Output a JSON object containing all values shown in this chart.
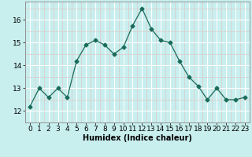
{
  "x": [
    0,
    1,
    2,
    3,
    4,
    5,
    6,
    7,
    8,
    9,
    10,
    11,
    12,
    13,
    14,
    15,
    16,
    17,
    18,
    19,
    20,
    21,
    22,
    23
  ],
  "y": [
    12.2,
    13.0,
    12.6,
    13.0,
    12.6,
    14.2,
    14.9,
    15.1,
    14.9,
    14.5,
    14.8,
    15.75,
    16.5,
    15.6,
    15.1,
    15.0,
    14.2,
    13.5,
    13.1,
    12.5,
    13.0,
    12.5,
    12.5,
    12.6
  ],
  "xlabel": "Humidex (Indice chaleur)",
  "ylim": [
    11.8,
    16.8
  ],
  "xlim": [
    -0.5,
    23.5
  ],
  "yticks": [
    12,
    13,
    14,
    15,
    16
  ],
  "xticks": [
    0,
    1,
    2,
    3,
    4,
    5,
    6,
    7,
    8,
    9,
    10,
    11,
    12,
    13,
    14,
    15,
    16,
    17,
    18,
    19,
    20,
    21,
    22,
    23
  ],
  "line_color": "#1a6b5a",
  "marker": "D",
  "marker_size": 2.5,
  "bg_color": "#c8eeee",
  "grid_major_color": "#ffffff",
  "grid_minor_color": "#e0c8c8",
  "xlabel_fontsize": 7,
  "tick_fontsize": 6.5
}
